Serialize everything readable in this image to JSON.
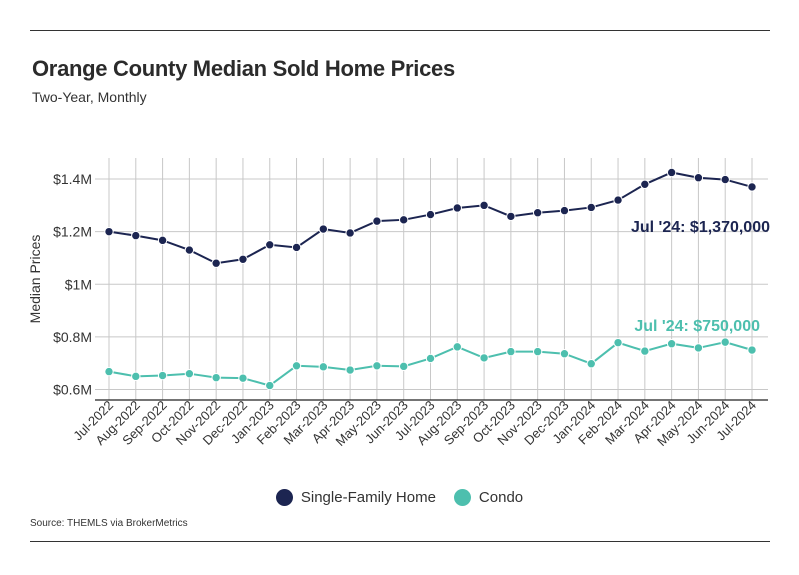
{
  "chart_data": {
    "type": "line",
    "title": "Orange County Median Sold Home Prices",
    "subtitle": "Two-Year, Monthly",
    "ylabel": "Median Prices",
    "xlabel": "",
    "ylim": [
      0.56,
      1.48
    ],
    "yticks": [
      {
        "value": 0.6,
        "label": "$0.6M"
      },
      {
        "value": 0.8,
        "label": "$0.8M"
      },
      {
        "value": 1.0,
        "label": "$1M"
      },
      {
        "value": 1.2,
        "label": "$1.2M"
      },
      {
        "value": 1.4,
        "label": "$1.4M"
      }
    ],
    "categories": [
      "Jul-2022",
      "Aug-2022",
      "Sep-2022",
      "Oct-2022",
      "Nov-2022",
      "Dec-2022",
      "Jan-2023",
      "Feb-2023",
      "Mar-2023",
      "Apr-2023",
      "May-2023",
      "Jun-2023",
      "Jul-2023",
      "Aug-2023",
      "Sep-2023",
      "Oct-2023",
      "Nov-2023",
      "Dec-2023",
      "Jan-2024",
      "Feb-2024",
      "Mar-2024",
      "Apr-2024",
      "May-2024",
      "Jun-2024",
      "Jul-2024"
    ],
    "series": [
      {
        "name": "Single-Family Home",
        "color": "#1c2551",
        "values": [
          1.2,
          1.185,
          1.167,
          1.13,
          1.08,
          1.095,
          1.15,
          1.14,
          1.21,
          1.195,
          1.24,
          1.245,
          1.265,
          1.29,
          1.3,
          1.258,
          1.272,
          1.28,
          1.292,
          1.32,
          1.38,
          1.425,
          1.405,
          1.398,
          1.37
        ],
        "annotation": "Jul '24: $1,370,000"
      },
      {
        "name": "Condo",
        "color": "#4dbfae",
        "values": [
          0.668,
          0.65,
          0.653,
          0.66,
          0.645,
          0.643,
          0.615,
          0.69,
          0.686,
          0.674,
          0.69,
          0.688,
          0.718,
          0.762,
          0.72,
          0.744,
          0.744,
          0.736,
          0.698,
          0.778,
          0.746,
          0.774,
          0.758,
          0.78,
          0.75
        ],
        "annotation": "Jul '24: $750,000"
      }
    ],
    "grid": true,
    "legend_position": "bottom-center"
  },
  "source": "Source:  THEMLS via BrokerMetrics"
}
